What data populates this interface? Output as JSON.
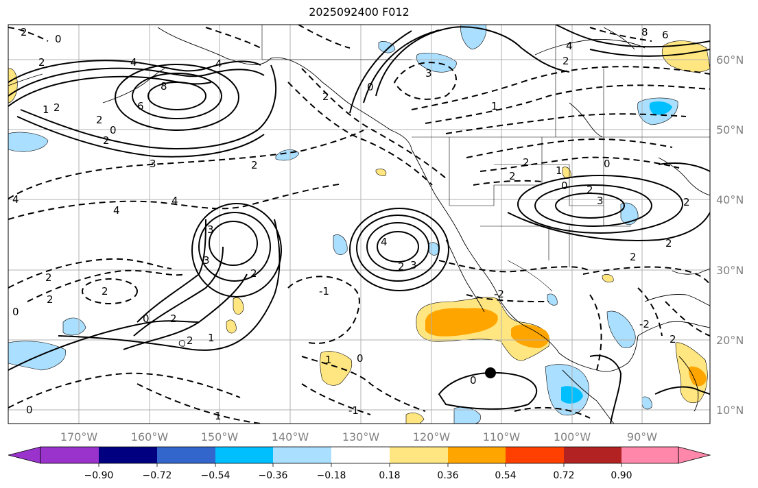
{
  "title": "2025092400 F012",
  "map": {
    "lon_labels": [
      "170°W",
      "160°W",
      "150°W",
      "140°W",
      "130°W",
      "120°W",
      "110°W",
      "100°W",
      "90°W"
    ],
    "lat_labels": [
      "60°N",
      "50°N",
      "40°N",
      "30°N",
      "20°N",
      "10°N"
    ],
    "contour_labels": [
      "2",
      "0",
      "2",
      "1",
      "2",
      "4",
      "8",
      "6",
      "4",
      "2",
      "0",
      "2",
      "3",
      "4",
      "4",
      "2",
      "2",
      "2",
      "0",
      "3",
      "2",
      "3",
      "4",
      "2",
      "0",
      "2",
      "1",
      "2",
      "0",
      "4",
      "3",
      "-1",
      "1",
      "0",
      "-1",
      "1",
      "2",
      "0",
      "3",
      "2",
      "0",
      "1",
      "2",
      "4",
      "6",
      "8",
      "3",
      "2",
      "0",
      "2",
      "2",
      "1",
      "0",
      "2",
      "2",
      "2",
      "-2",
      "-2",
      "2"
    ],
    "marker": "dot"
  },
  "colorbar": {
    "tick_labels": [
      "−0.90",
      "−0.72",
      "−0.54",
      "−0.36",
      "−0.18",
      "0.18",
      "0.36",
      "0.54",
      "0.72",
      "0.90"
    ],
    "colors": [
      "#9933cc",
      "#000080",
      "#3366cc",
      "#00bfff",
      "#aadfff",
      "#ffffff",
      "#ffe680",
      "#ffa500",
      "#ff4000",
      "#b22222",
      "#ff88aa"
    ]
  },
  "colors": {
    "neg_fill_light": "#aadfff",
    "neg_fill_strong": "#00bfff",
    "pos_fill_light": "#ffe680",
    "pos_fill_strong": "#ffa500",
    "axis_tick": "#808080"
  }
}
